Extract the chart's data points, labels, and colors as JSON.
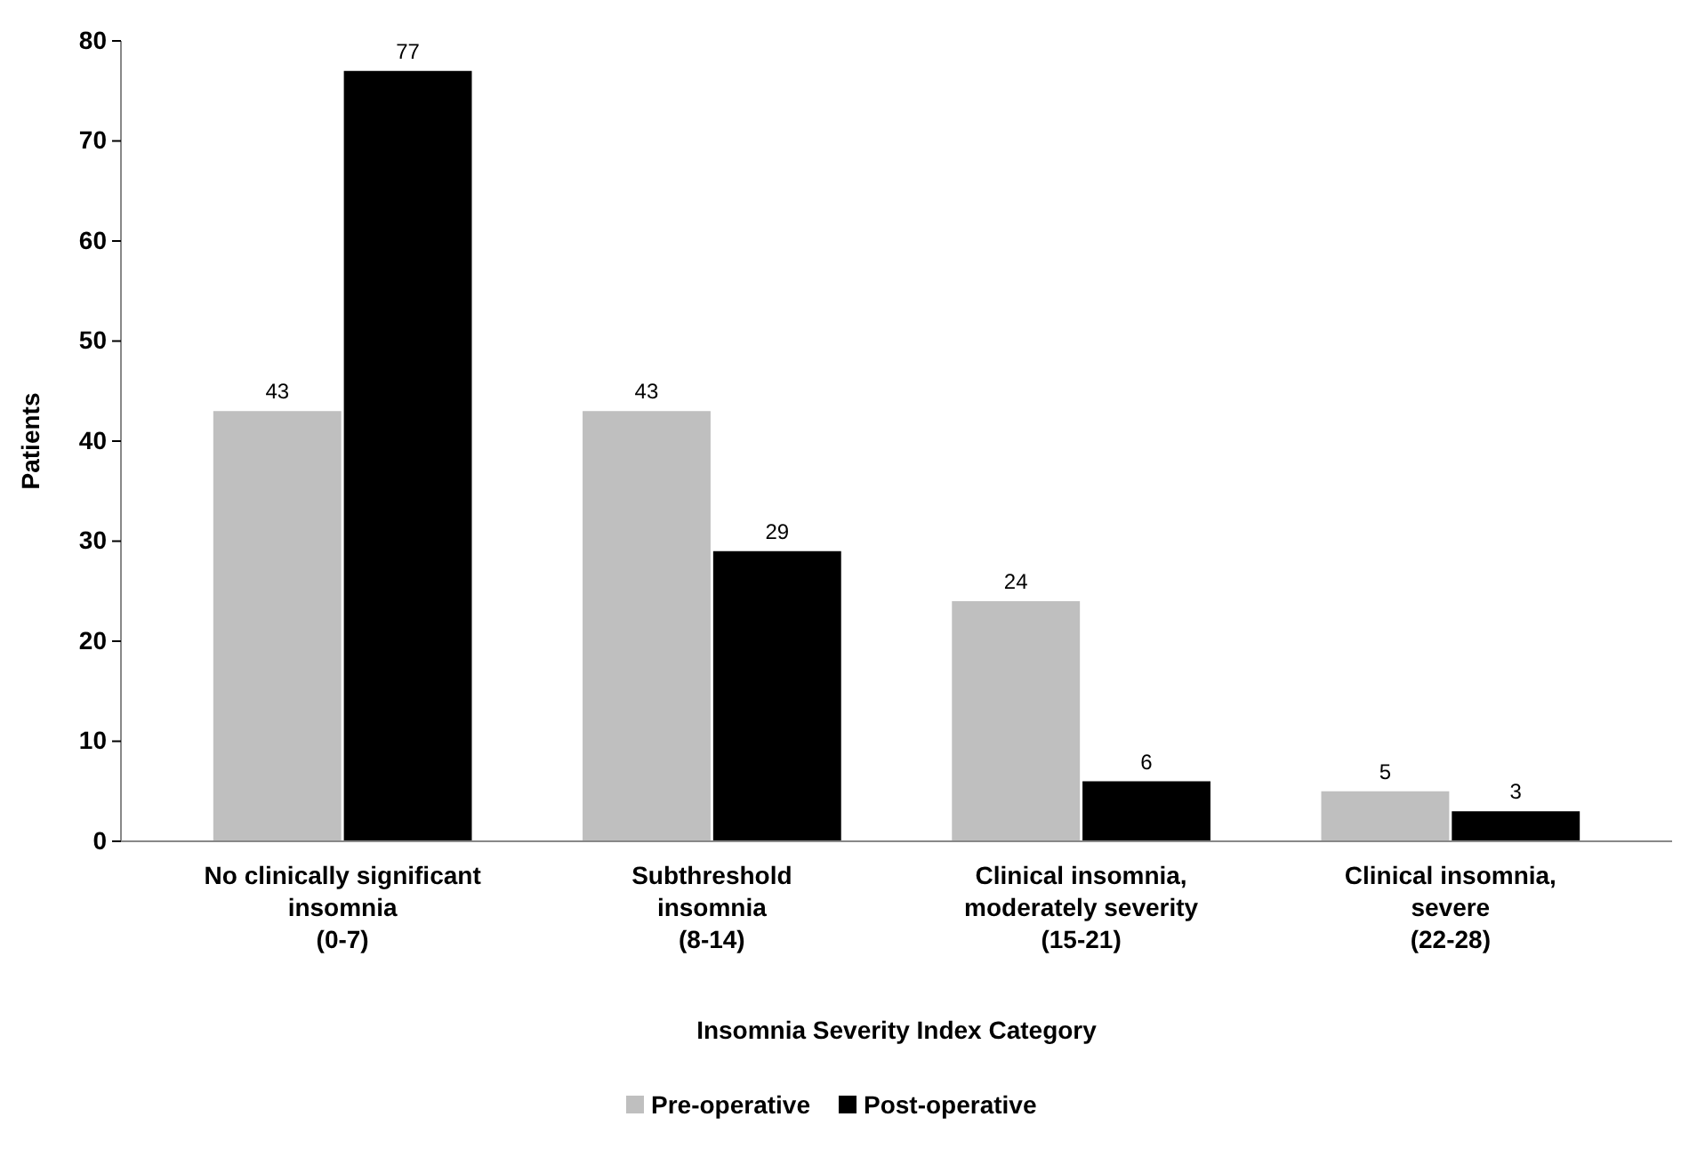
{
  "chart_data": {
    "type": "bar",
    "xlabel": "Insomnia Severity Index Category",
    "ylabel": "Patients",
    "categories": [
      "No clinically significant\ninsomnia\n(0-7)",
      "Subthreshold\ninsomnia\n(8-14)",
      "Clinical insomnia,\nmoderately severity\n(15-21)",
      "Clinical insomnia,\nsevere\n(22-28)"
    ],
    "series": [
      {
        "name": "Pre-operative",
        "color": "#bfbfbf",
        "values": [
          43,
          43,
          24,
          5
        ]
      },
      {
        "name": "Post-operative",
        "color": "#000000",
        "values": [
          77,
          29,
          6,
          3
        ]
      }
    ],
    "ylim": [
      0,
      80
    ],
    "yticks": [
      0,
      10,
      20,
      30,
      40,
      50,
      60,
      70,
      80
    ],
    "data_labels": true,
    "legend": "bottom",
    "grid": false
  }
}
